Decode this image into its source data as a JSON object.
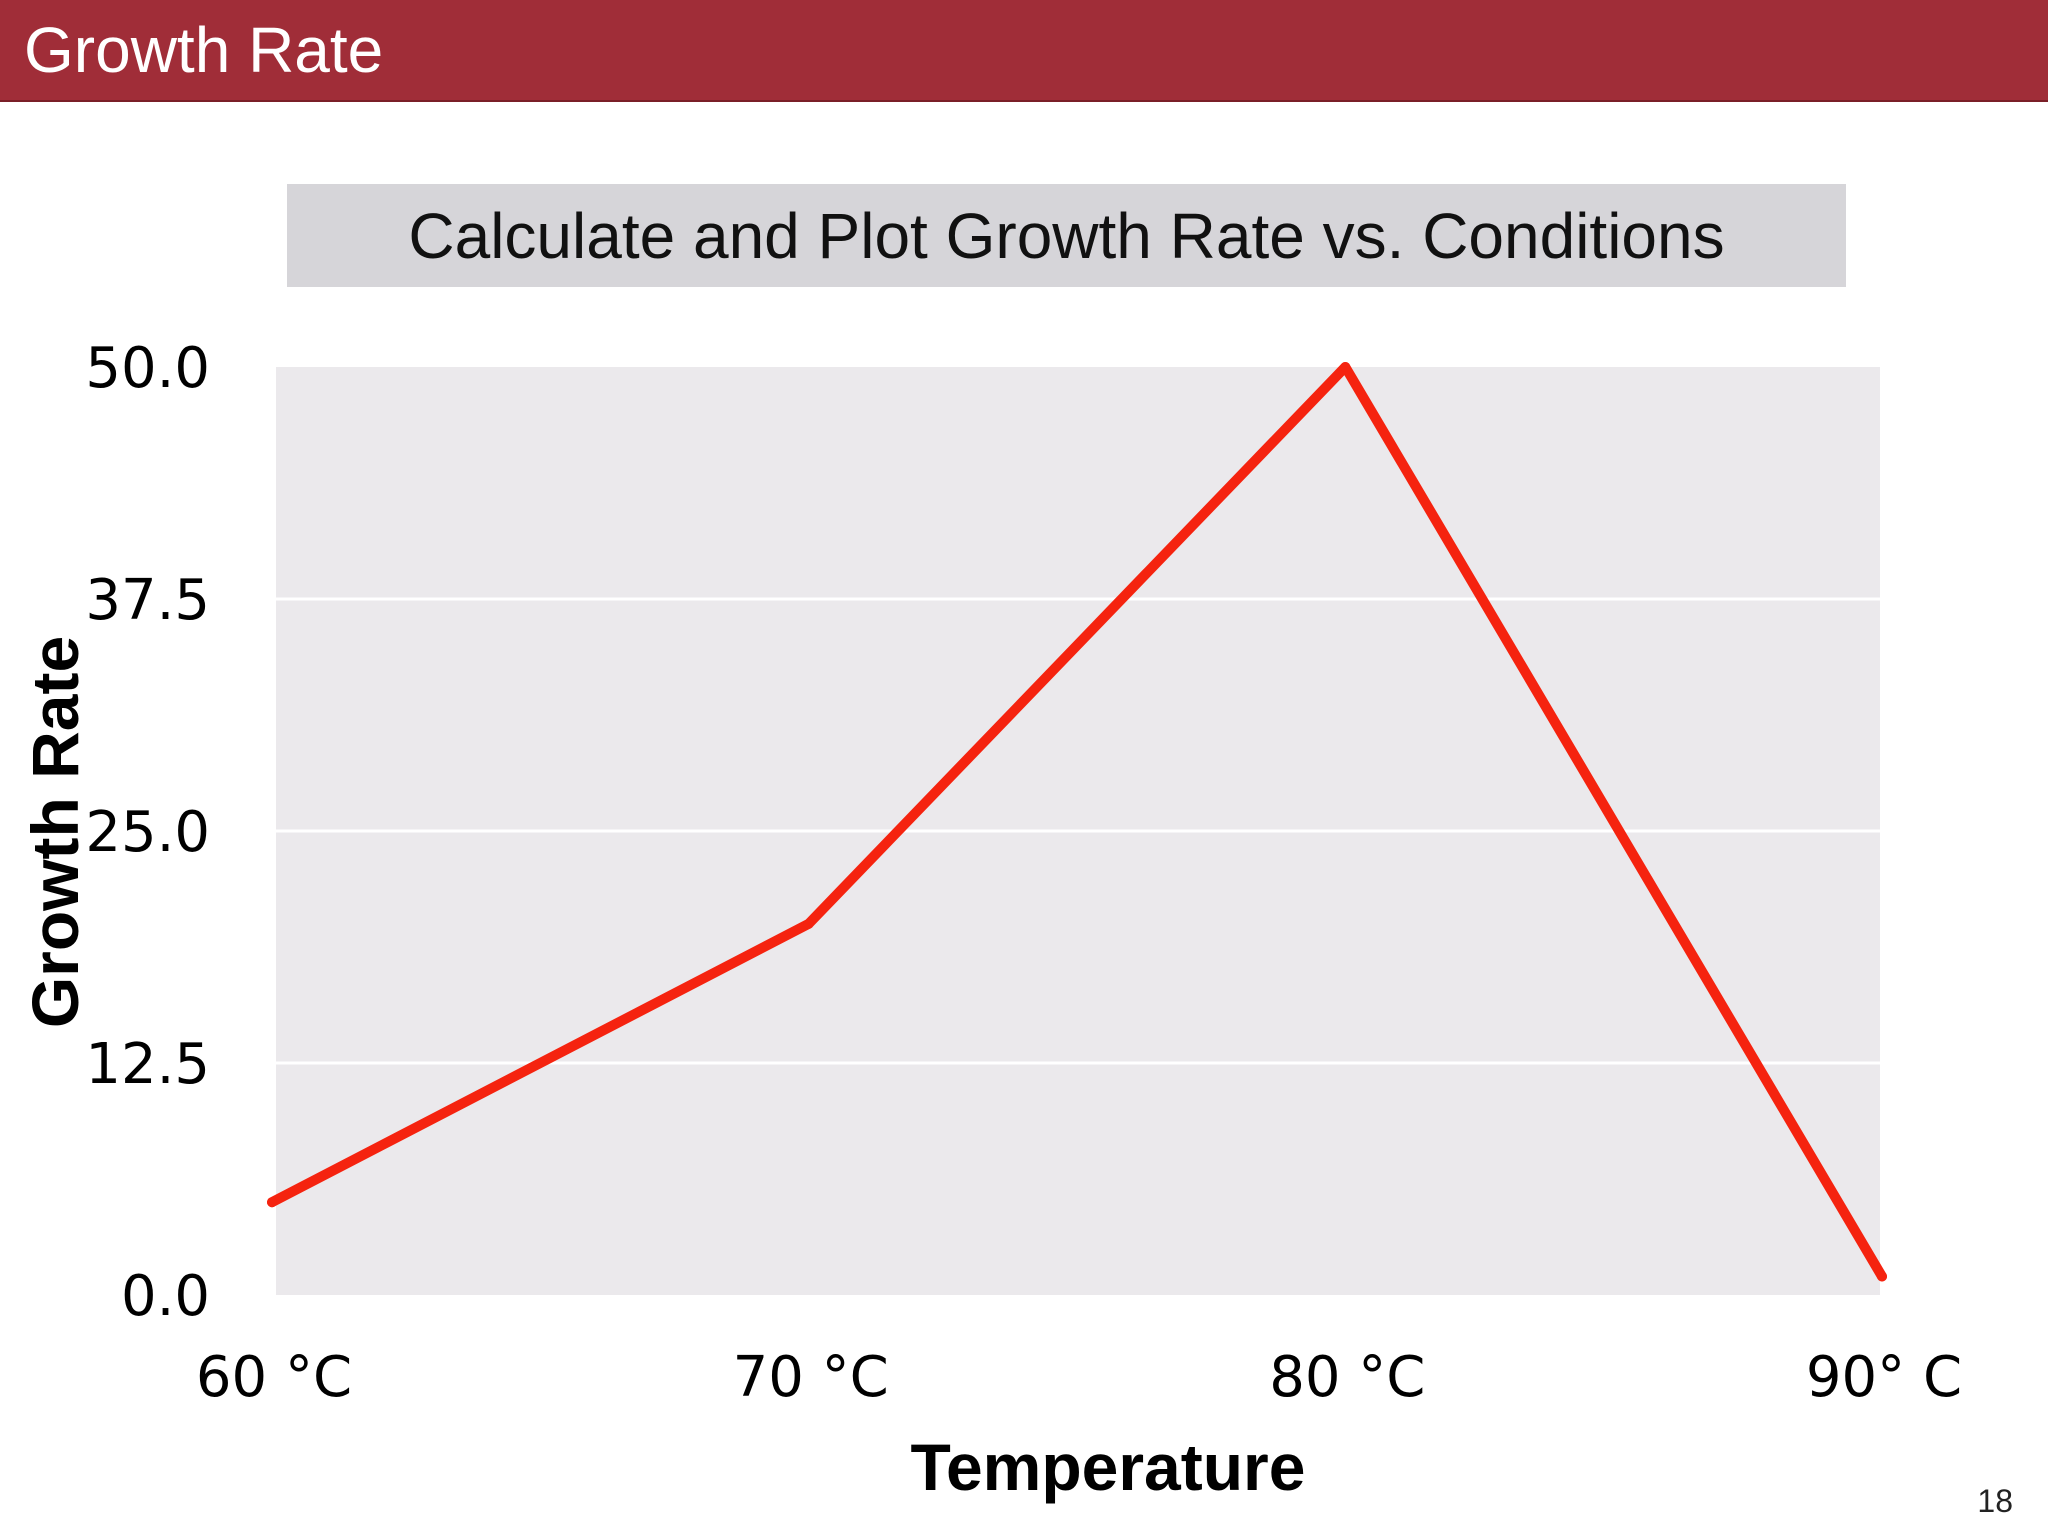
{
  "header": {
    "title": "Growth Rate"
  },
  "subtitle": "Calculate and Plot Growth Rate vs. Conditions",
  "page_number": "18",
  "colors": {
    "header_background": "#a02d38",
    "subtitle_background": "#d6d5d9",
    "plot_background": "#ebe9ec",
    "line": "#f5230f"
  },
  "chart_data": {
    "type": "line",
    "categories": [
      "60 °C",
      "70 °C",
      "80 °C",
      "90° C"
    ],
    "series": [
      {
        "values": [
          5,
          20,
          50,
          1
        ]
      }
    ],
    "xlabel": "Temperature",
    "ylabel": "Growth Rate",
    "yticks": [
      "0.0",
      "12.5",
      "25.0",
      "37.5",
      "50.0"
    ],
    "ylim": [
      0,
      50
    ],
    "grid": true,
    "legend": "none"
  }
}
